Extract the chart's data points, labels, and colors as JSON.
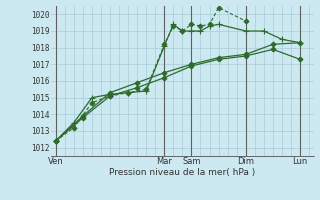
{
  "background_color": "#cce8f0",
  "grid_color": "#a8ccd8",
  "line_color": "#2d6a2d",
  "xlabel": "Pression niveau de la mer( hPa )",
  "ylim": [
    1011.5,
    1020.5
  ],
  "yticks": [
    1012,
    1013,
    1014,
    1015,
    1016,
    1017,
    1018,
    1019,
    1020
  ],
  "xlim": [
    -0.5,
    28.5
  ],
  "xtick_labels": [
    "Ven",
    "Mar",
    "Sam",
    "Dim",
    "Lun"
  ],
  "xtick_positions": [
    0,
    12,
    15,
    21,
    27
  ],
  "series": [
    {
      "x": [
        0,
        2,
        4,
        6,
        8,
        10,
        12,
        13,
        14,
        15,
        16,
        17,
        18,
        21
      ],
      "y": [
        1012.4,
        1013.2,
        1014.7,
        1015.1,
        1015.3,
        1015.5,
        1018.2,
        1019.3,
        1019.0,
        1019.4,
        1019.3,
        1019.4,
        1020.4,
        1019.6
      ],
      "style": "dashed",
      "marker": "D",
      "markersize": 2.5,
      "lw": 0.8
    },
    {
      "x": [
        0,
        2,
        4,
        6,
        8,
        10,
        12,
        13,
        14,
        15,
        16,
        17,
        18,
        21,
        23,
        25,
        27
      ],
      "y": [
        1012.4,
        1013.5,
        1015.0,
        1015.2,
        1015.3,
        1015.4,
        1018.1,
        1019.4,
        1019.0,
        1019.0,
        1019.0,
        1019.3,
        1019.4,
        1019.0,
        1019.0,
        1018.5,
        1018.3
      ],
      "style": "solid",
      "marker": "+",
      "markersize": 4,
      "lw": 0.9
    },
    {
      "x": [
        0,
        3,
        6,
        9,
        12,
        15,
        18,
        21,
        24,
        27
      ],
      "y": [
        1012.4,
        1013.8,
        1015.1,
        1015.6,
        1016.2,
        1016.9,
        1017.3,
        1017.5,
        1017.9,
        1017.3
      ],
      "style": "solid",
      "marker": "D",
      "markersize": 2.5,
      "lw": 0.9
    },
    {
      "x": [
        0,
        3,
        6,
        9,
        12,
        15,
        18,
        21,
        24,
        27
      ],
      "y": [
        1012.4,
        1013.9,
        1015.3,
        1015.9,
        1016.5,
        1017.0,
        1017.4,
        1017.6,
        1018.2,
        1018.3
      ],
      "style": "solid",
      "marker": "D",
      "markersize": 2.5,
      "lw": 0.9
    }
  ],
  "vlines_x": [
    0,
    12,
    15,
    21,
    27
  ],
  "vline_color": "#606060"
}
